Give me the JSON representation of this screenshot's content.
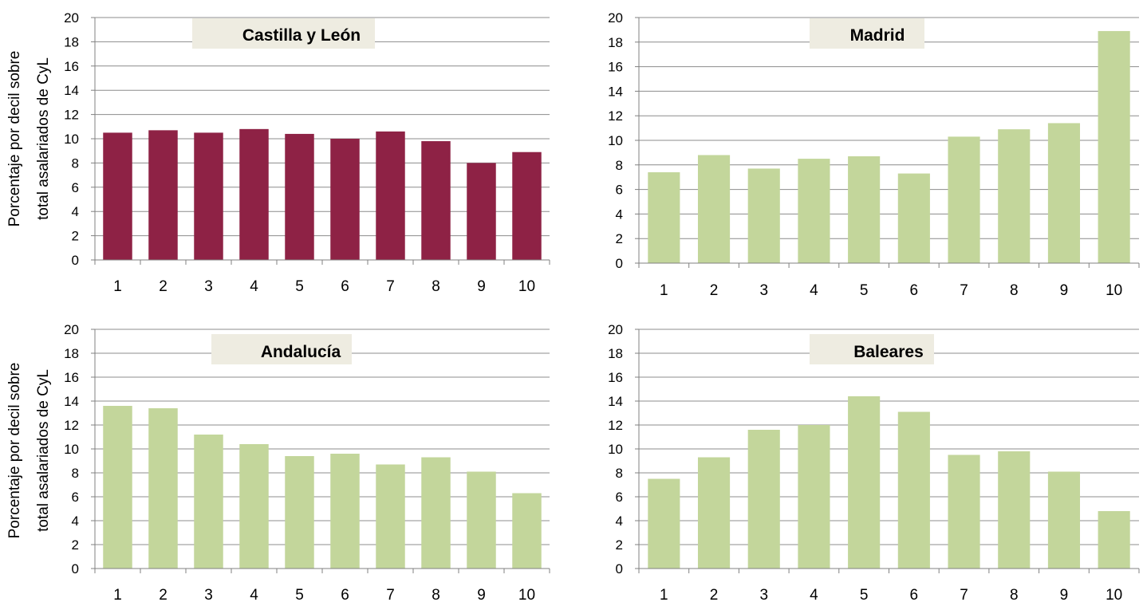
{
  "chart_data": [
    {
      "type": "bar",
      "title": "Castilla y León",
      "ylabel_lines": [
        "Porcentaje por decil sobre",
        "total asalariados de CyL"
      ],
      "categories": [
        "1",
        "2",
        "3",
        "4",
        "5",
        "6",
        "7",
        "8",
        "9",
        "10"
      ],
      "values": [
        10.5,
        10.7,
        10.5,
        10.8,
        10.4,
        10.0,
        10.6,
        9.8,
        8.0,
        8.9
      ],
      "ylim": [
        0,
        20
      ],
      "yticks": [
        "0",
        "2",
        "4",
        "6",
        "8",
        "10",
        "12",
        "14",
        "16",
        "18",
        "20"
      ],
      "grid": true,
      "bar_color": "#8e2245"
    },
    {
      "type": "bar",
      "title": "Madrid",
      "ylabel_lines": [],
      "categories": [
        "1",
        "2",
        "3",
        "4",
        "5",
        "6",
        "7",
        "8",
        "9",
        "10"
      ],
      "values": [
        7.4,
        8.8,
        7.7,
        8.5,
        8.7,
        7.3,
        10.3,
        10.9,
        11.4,
        18.9
      ],
      "ylim": [
        0,
        20
      ],
      "yticks": [
        "0",
        "2",
        "4",
        "6",
        "8",
        "10",
        "12",
        "14",
        "16",
        "18",
        "20"
      ],
      "grid": true,
      "bar_color": "#c3d69b"
    },
    {
      "type": "bar",
      "title": "Andalucía",
      "ylabel_lines": [
        "Porcentaje por decil sobre",
        "total asalariados de CyL"
      ],
      "categories": [
        "1",
        "2",
        "3",
        "4",
        "5",
        "6",
        "7",
        "8",
        "9",
        "10"
      ],
      "values": [
        13.6,
        13.4,
        11.2,
        10.4,
        9.4,
        9.6,
        8.7,
        9.3,
        8.1,
        6.3
      ],
      "ylim": [
        0,
        20
      ],
      "yticks": [
        "0",
        "2",
        "4",
        "6",
        "8",
        "10",
        "12",
        "14",
        "16",
        "18",
        "20"
      ],
      "grid": true,
      "bar_color": "#c3d69b"
    },
    {
      "type": "bar",
      "title": "Baleares",
      "ylabel_lines": [],
      "categories": [
        "1",
        "2",
        "3",
        "4",
        "5",
        "6",
        "7",
        "8",
        "9",
        "10"
      ],
      "values": [
        7.5,
        9.3,
        11.6,
        12.0,
        14.4,
        13.1,
        9.5,
        9.8,
        8.1,
        4.8
      ],
      "ylim": [
        0,
        20
      ],
      "yticks": [
        "0",
        "2",
        "4",
        "6",
        "8",
        "10",
        "12",
        "14",
        "16",
        "18",
        "20"
      ],
      "grid": true,
      "bar_color": "#c3d69b"
    }
  ],
  "colors": {
    "gridline": "#8c8c8c",
    "axis": "#808080",
    "title_box": "#eeece1"
  }
}
